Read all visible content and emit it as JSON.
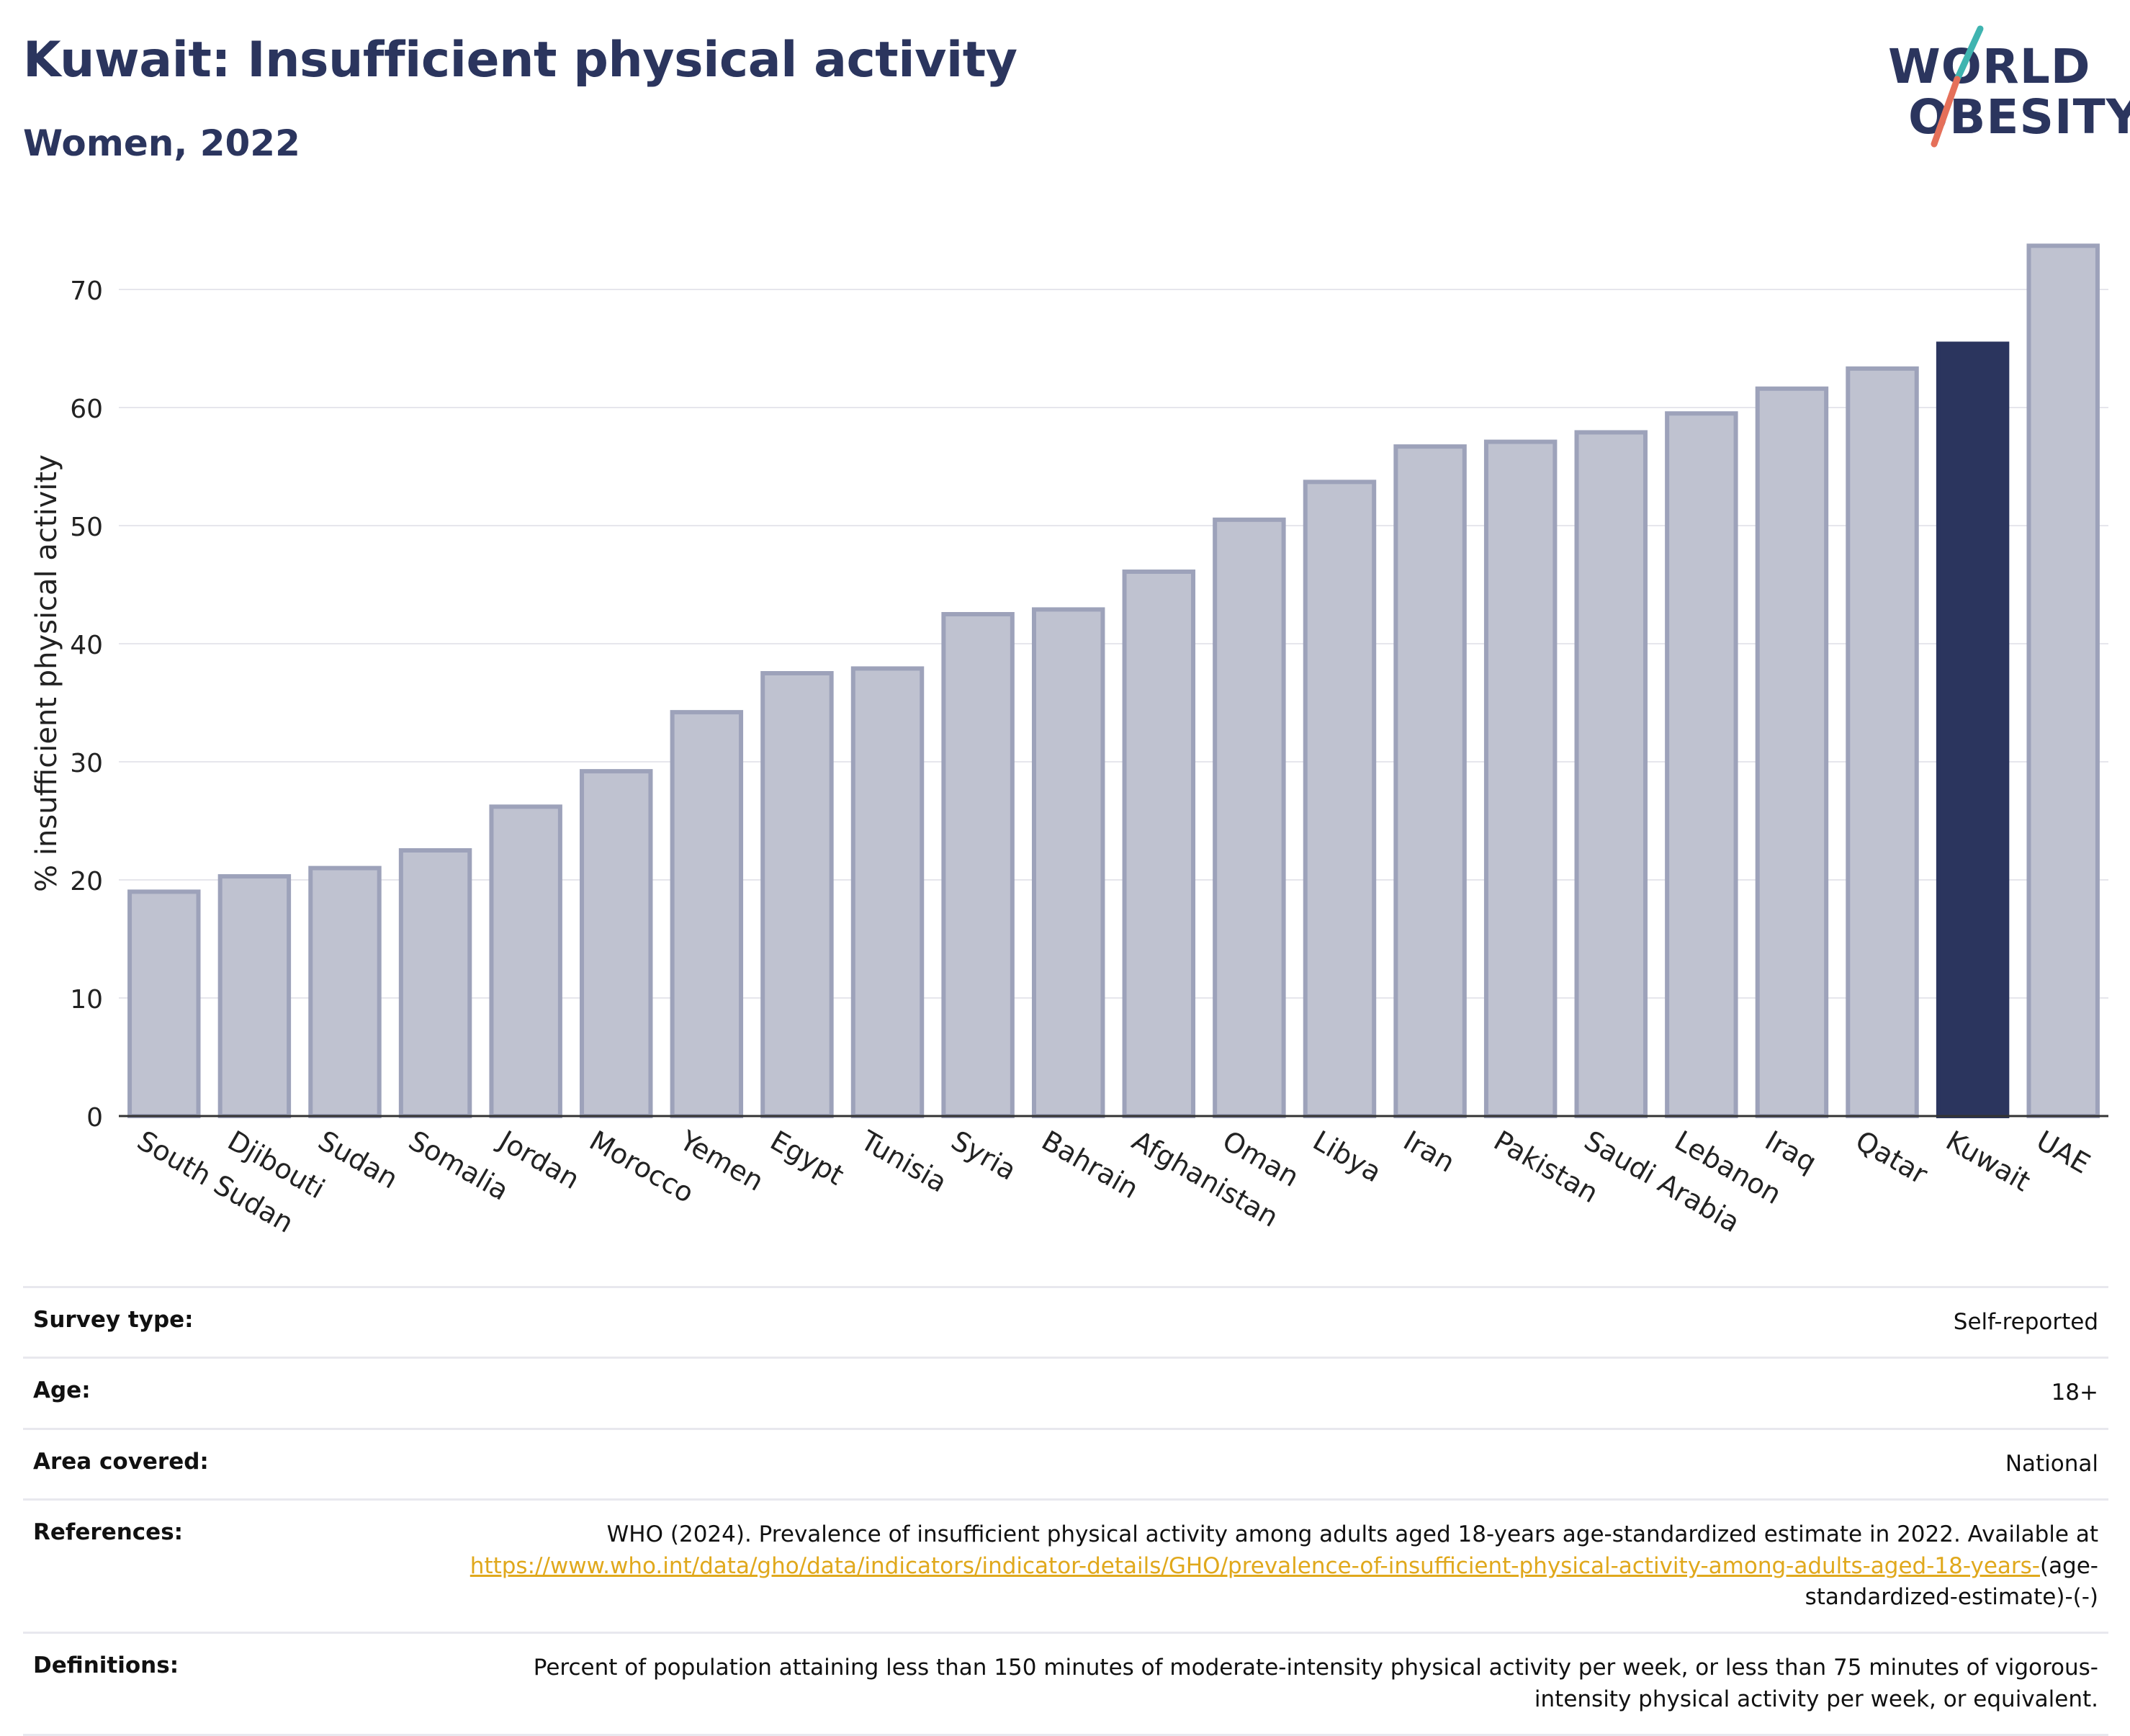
{
  "header": {
    "title": "Kuwait: Insufficient physical activity",
    "subtitle": "Women, 2022"
  },
  "logo": {
    "line1": "WORLD",
    "line2": "OBESITY",
    "colors": {
      "text": "#2b355e",
      "slash_top": "#3fb4b0",
      "slash_bottom": "#e5705a"
    }
  },
  "chart_data": {
    "type": "bar",
    "title": "",
    "xlabel": "",
    "ylabel": "% insufficient physical activity",
    "ylim": [
      0,
      75
    ],
    "yticks": [
      0,
      10,
      20,
      30,
      40,
      50,
      60,
      70
    ],
    "grid": true,
    "highlight": "Kuwait",
    "colors": {
      "bar": "#bfc2d0",
      "bar_edge": "#9da2ba",
      "highlight": "#2b355e",
      "grid": "#e6e6ec",
      "axis": "#333333"
    },
    "categories": [
      "South Sudan",
      "Djibouti",
      "Sudan",
      "Somalia",
      "Jordan",
      "Morocco",
      "Yemen",
      "Egypt",
      "Tunisia",
      "Syria",
      "Bahrain",
      "Afghanistan",
      "Oman",
      "Libya",
      "Iran",
      "Pakistan",
      "Saudi Arabia",
      "Lebanon",
      "Iraq",
      "Qatar",
      "Kuwait",
      "UAE"
    ],
    "values": [
      19.0,
      20.3,
      21.0,
      22.5,
      26.2,
      29.2,
      34.2,
      37.5,
      37.9,
      42.5,
      42.9,
      46.1,
      50.5,
      53.7,
      56.7,
      57.1,
      57.9,
      59.5,
      61.6,
      63.3,
      65.4,
      73.7
    ]
  },
  "meta": {
    "survey_type": {
      "label": "Survey type:",
      "value": "Self-reported"
    },
    "age": {
      "label": "Age:",
      "value": "18+"
    },
    "area": {
      "label": "Area covered:",
      "value": "National"
    },
    "references": {
      "label": "References:",
      "text": "WHO (2024). Prevalence of insufficient physical activity among adults aged 18-years age-standardized estimate in 2022. Available at",
      "link": "https://www.who.int/data/gho/data/indicators/indicator-details/GHO/prevalence-of-insufficient-physical-activity-among-adults-aged-18-years-",
      "suffix": "(age-standardized-estimate)-(-)"
    },
    "definitions": {
      "label": "Definitions:",
      "value": "Percent of population attaining less than 150 minutes of moderate-intensity physical activity per week, or less than 75 minutes of vigorous-intensity physical activity per week, or equivalent."
    }
  }
}
